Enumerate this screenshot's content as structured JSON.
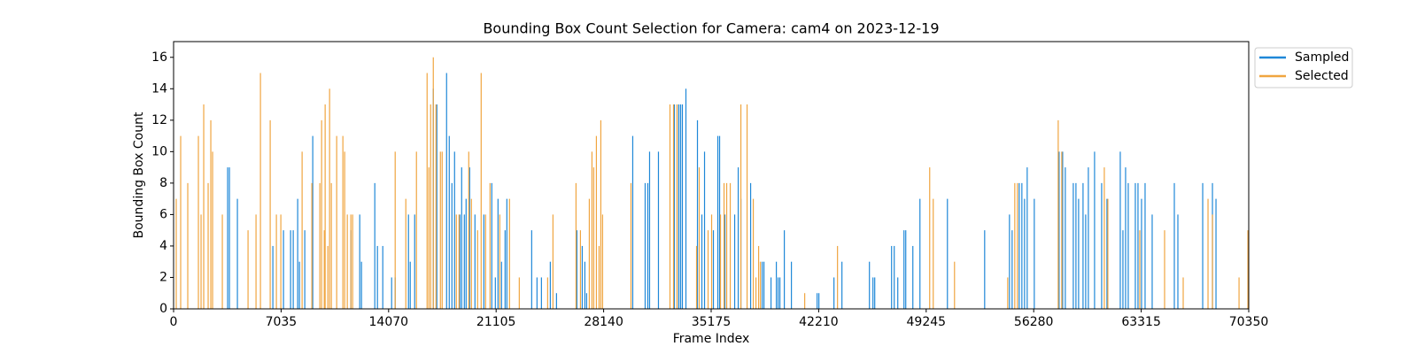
{
  "chart_data": {
    "type": "bar",
    "title": "Bounding Box Count Selection for Camera: cam4 on 2023-12-19",
    "x_label": "Frame Index",
    "y_label": "Bounding Box Count",
    "xlim": [
      0,
      70350
    ],
    "ylim": [
      0,
      17
    ],
    "xticks": [
      0,
      7035,
      14070,
      21105,
      28140,
      35175,
      42210,
      49245,
      56280,
      63315,
      70350
    ],
    "yticks": [
      0,
      2,
      4,
      6,
      8,
      10,
      12,
      14,
      16
    ],
    "legend": "upper right outside",
    "series": [
      {
        "name": "Sampled",
        "color": "#1f88d8",
        "x": [
          3538,
          3654,
          4176,
          6496,
          7192,
          7656,
          7830,
          8120,
          8236,
          8584,
          9106,
          11600,
          12180,
          12296,
          13166,
          13340,
          13688,
          14268,
          14500,
          15370,
          15486,
          15776,
          16994,
          17226,
          17864,
          18038,
          18212,
          18386,
          18734,
          18850,
          19024,
          19140,
          19372,
          19720,
          20300,
          20822,
          21054,
          21228,
          21460,
          21692,
          21808,
          23432,
          23780,
          24070,
          24650,
          25056,
          26390,
          26738,
          26912,
          27028,
          30044,
          30856,
          31030,
          31146,
          31726,
          32770,
          32944,
          33060,
          33176,
          33292,
          33524,
          34278,
          34568,
          34742,
          35322,
          35612,
          35728,
          36076,
          36714,
          36946,
          37120,
          37758,
          38512,
          38628,
          39092,
          39440,
          39556,
          39672,
          39962,
          40426,
          42108,
          42224,
          43210,
          43732,
          45530,
          45762,
          45878,
          46980,
          47154,
          47386,
          47792,
          47908,
          48372,
          48836,
          50634,
          53070,
          54694,
          54868,
          55332,
          55506,
          55680,
          55854,
          56318,
          57942,
          58174,
          58348,
          58870,
          59044,
          59218,
          59508,
          59682,
          59856,
          60262,
          60726,
          61074,
          61944,
          62118,
          62292,
          62466,
          62930,
          63104,
          63336,
          63568,
          64032,
          65482,
          65714,
          67338,
          67976,
          68208
        ],
        "values": [
          9,
          9,
          7,
          4,
          5,
          5,
          5,
          7,
          3,
          5,
          11,
          5,
          6,
          3,
          8,
          4,
          4,
          2,
          2,
          6,
          3,
          6,
          14,
          13,
          15,
          11,
          8,
          10,
          6,
          9,
          6,
          7,
          9,
          6,
          6,
          8,
          2,
          7,
          3,
          5,
          7,
          5,
          2,
          2,
          3,
          1,
          5,
          4,
          3,
          1,
          11,
          8,
          8,
          10,
          10,
          13,
          13,
          13,
          13,
          13,
          14,
          12,
          6,
          10,
          5,
          11,
          11,
          6,
          6,
          9,
          7,
          8,
          3,
          3,
          2,
          3,
          2,
          2,
          5,
          3,
          1,
          1,
          2,
          3,
          3,
          2,
          2,
          4,
          4,
          2,
          5,
          5,
          4,
          7,
          7,
          5,
          6,
          5,
          8,
          8,
          7,
          9,
          7,
          10,
          10,
          9,
          8,
          8,
          7,
          8,
          6,
          9,
          10,
          8,
          7,
          10,
          5,
          9,
          8,
          8,
          8,
          7,
          8,
          6,
          8,
          6,
          8,
          8,
          7
        ]
      },
      {
        "name": "Selected",
        "color": "#f0a540",
        "x": [
          174,
          464,
          928,
          1624,
          1798,
          1972,
          2262,
          2436,
          2552,
          3190,
          4872,
          5394,
          5684,
          6322,
          6728,
          7018,
          8410,
          9048,
          9570,
          9686,
          9860,
          9918,
          10092,
          10208,
          10324,
          10672,
          11078,
          11194,
          11368,
          11600,
          11716,
          14500,
          15196,
          15892,
          16588,
          16704,
          16820,
          16994,
          17168,
          17458,
          17574,
          18502,
          18676,
          19314,
          19488,
          19894,
          20126,
          20416,
          20706,
          21344,
          21982,
          22620,
          24476,
          24824,
          26332,
          26622,
          27202,
          27376,
          27492,
          27666,
          27840,
          27956,
          28072,
          29928,
          32480,
          32712,
          32944,
          34220,
          34394,
          34974,
          35206,
          35786,
          36018,
          36192,
          36424,
          37120,
          37526,
          37932,
          38106,
          38280,
          38396,
          41296,
          43442,
          49474,
          49706,
          51098,
          54578,
          55042,
          55216,
          57884,
          58116,
          60900,
          61132,
          63220,
          64844,
          66062,
          67686,
          67976,
          69716,
          70296
        ],
        "values": [
          7,
          11,
          8,
          11,
          6,
          13,
          8,
          12,
          10,
          6,
          5,
          6,
          15,
          12,
          6,
          6,
          10,
          8,
          8,
          12,
          5,
          13,
          4,
          14,
          8,
          11,
          11,
          10,
          6,
          6,
          6,
          10,
          7,
          10,
          15,
          9,
          13,
          16,
          13,
          10,
          10,
          6,
          6,
          10,
          7,
          5,
          15,
          6,
          8,
          6,
          7,
          2,
          2,
          6,
          8,
          5,
          7,
          10,
          9,
          11,
          4,
          12,
          6,
          8,
          13,
          13,
          13,
          4,
          9,
          5,
          6,
          6,
          8,
          8,
          8,
          13,
          13,
          7,
          2,
          4,
          3,
          1,
          4,
          9,
          7,
          3,
          2,
          8,
          8,
          12,
          10,
          9,
          7,
          5,
          5,
          2,
          7,
          6,
          2,
          5
        ]
      }
    ]
  }
}
